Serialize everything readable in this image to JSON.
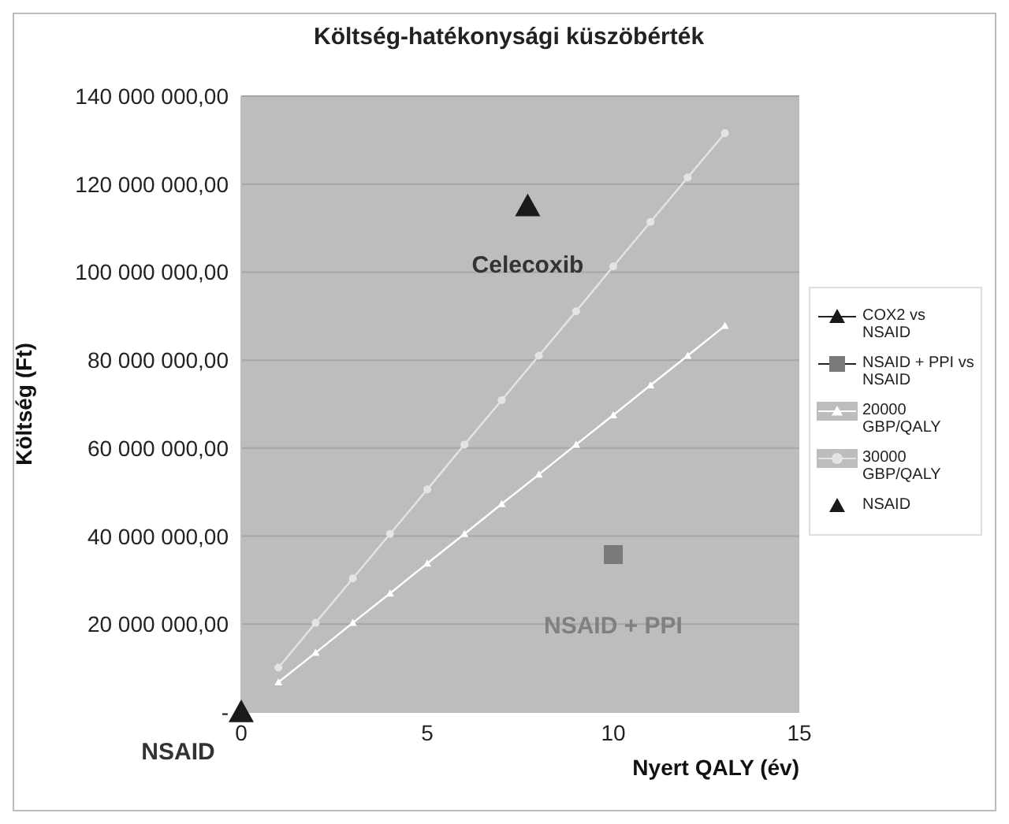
{
  "chart_data": {
    "type": "scatter",
    "title": "Költség-hatékonysági küszöbérték",
    "xlabel": "Nyert QALY (év)",
    "ylabel": "Költség (Ft)",
    "xlim": [
      0,
      15
    ],
    "xticks": [
      0,
      5,
      10,
      15
    ],
    "ylim": [
      0,
      140000000
    ],
    "yticks": [
      {
        "value": 0,
        "label": "-"
      },
      {
        "value": 20000000,
        "label": "20 000 000,00"
      },
      {
        "value": 40000000,
        "label": "40 000 000,00"
      },
      {
        "value": 60000000,
        "label": "60 000 000,00"
      },
      {
        "value": 80000000,
        "label": "80 000 000,00"
      },
      {
        "value": 100000000,
        "label": "100 000 000,00"
      },
      {
        "value": 120000000,
        "label": "120 000 000,00"
      },
      {
        "value": 140000000,
        "label": "140 000 000,00"
      }
    ],
    "grid": "y",
    "legend": "right",
    "series": [
      {
        "name": "COX2 vs NSAID",
        "marker": "triangle",
        "color": "#1a1a1a",
        "x": [
          7.7
        ],
        "values": [
          115000000
        ]
      },
      {
        "name": "NSAID + PPI vs NSAID",
        "marker": "square",
        "color": "#7a7a7a",
        "x": [
          10
        ],
        "values": [
          35800000
        ]
      },
      {
        "name": "20000 GBP/QALY",
        "type": "line",
        "marker": "triangle",
        "color": "#ffffff",
        "x": [
          1,
          2,
          3,
          4,
          5,
          6,
          7,
          8,
          9,
          10,
          11,
          12,
          13
        ],
        "values": [
          6800000,
          13500000,
          20300000,
          27000000,
          33800000,
          40500000,
          47300000,
          54000000,
          60800000,
          67500000,
          74300000,
          81000000,
          87800000
        ]
      },
      {
        "name": "30000 GBP/QALY",
        "type": "line",
        "marker": "circle",
        "color": "#e4e4e4",
        "x": [
          1,
          2,
          3,
          4,
          5,
          6,
          7,
          8,
          9,
          10,
          11,
          12,
          13
        ],
        "values": [
          10100000,
          20300000,
          30400000,
          40500000,
          50600000,
          60800000,
          70900000,
          81000000,
          91100000,
          101300000,
          111400000,
          121500000,
          131600000
        ]
      },
      {
        "name": "NSAID",
        "marker": "triangle",
        "color": "#1a1a1a",
        "x": [
          0
        ],
        "values": [
          0
        ]
      }
    ],
    "annotations": [
      {
        "text": "Celecoxib",
        "x": 7.7,
        "y": 115000000
      },
      {
        "text": "NSAID + PPI",
        "x": 10,
        "y": 35800000
      },
      {
        "text": "NSAID",
        "x": 0,
        "y": 0
      }
    ]
  }
}
